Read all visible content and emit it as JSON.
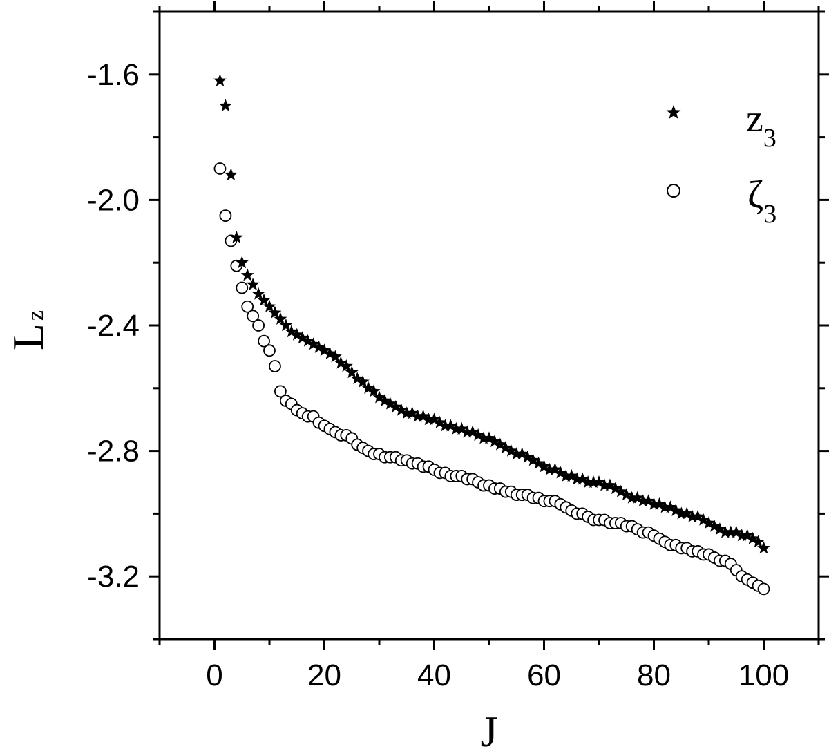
{
  "chart_data": {
    "type": "scatter",
    "xlabel": "J",
    "ylabel": "L",
    "ylabel_subscript": "z",
    "xlim": [
      -10,
      110
    ],
    "ylim": [
      -3.4,
      -1.4
    ],
    "x_ticks": [
      0,
      20,
      40,
      60,
      80,
      100
    ],
    "x_tick_labels": [
      "0",
      "20",
      "40",
      "60",
      "80",
      "100"
    ],
    "y_ticks": [
      -1.6,
      -2.0,
      -2.4,
      -2.8,
      -3.2
    ],
    "y_tick_labels": [
      "-1.6",
      "-2.0",
      "-2.4",
      "-2.8",
      "-3.2"
    ],
    "legend_position": "top-right",
    "series": [
      {
        "name": "z",
        "name_subscript": "3",
        "marker": "star-filled",
        "x": [
          1,
          2,
          3,
          4,
          5,
          6,
          7,
          8,
          9,
          10,
          11,
          12,
          13,
          14,
          15,
          16,
          17,
          18,
          19,
          20,
          21,
          22,
          23,
          24,
          25,
          26,
          27,
          28,
          29,
          30,
          31,
          32,
          33,
          34,
          35,
          36,
          37,
          38,
          39,
          40,
          41,
          42,
          43,
          44,
          45,
          46,
          47,
          48,
          49,
          50,
          51,
          52,
          53,
          54,
          55,
          56,
          57,
          58,
          59,
          60,
          61,
          62,
          63,
          64,
          65,
          66,
          67,
          68,
          69,
          70,
          71,
          72,
          73,
          74,
          75,
          76,
          77,
          78,
          79,
          80,
          81,
          82,
          83,
          84,
          85,
          86,
          87,
          88,
          89,
          90,
          91,
          92,
          93,
          94,
          95,
          96,
          97,
          98,
          99,
          100
        ],
        "y": [
          -1.62,
          -1.7,
          -1.92,
          -2.12,
          -2.2,
          -2.24,
          -2.27,
          -2.3,
          -2.32,
          -2.34,
          -2.36,
          -2.38,
          -2.4,
          -2.42,
          -2.43,
          -2.44,
          -2.45,
          -2.46,
          -2.47,
          -2.48,
          -2.49,
          -2.5,
          -2.52,
          -2.53,
          -2.55,
          -2.57,
          -2.58,
          -2.6,
          -2.61,
          -2.63,
          -2.64,
          -2.65,
          -2.66,
          -2.67,
          -2.68,
          -2.68,
          -2.69,
          -2.69,
          -2.7,
          -2.7,
          -2.71,
          -2.72,
          -2.72,
          -2.73,
          -2.73,
          -2.74,
          -2.74,
          -2.75,
          -2.76,
          -2.76,
          -2.77,
          -2.78,
          -2.79,
          -2.8,
          -2.81,
          -2.81,
          -2.82,
          -2.83,
          -2.84,
          -2.85,
          -2.86,
          -2.86,
          -2.87,
          -2.88,
          -2.88,
          -2.89,
          -2.89,
          -2.9,
          -2.9,
          -2.9,
          -2.91,
          -2.91,
          -2.92,
          -2.93,
          -2.94,
          -2.95,
          -2.95,
          -2.96,
          -2.96,
          -2.97,
          -2.97,
          -2.98,
          -2.98,
          -2.99,
          -3.0,
          -3.0,
          -3.01,
          -3.01,
          -3.02,
          -3.03,
          -3.04,
          -3.05,
          -3.06,
          -3.06,
          -3.06,
          -3.07,
          -3.07,
          -3.08,
          -3.09,
          -3.11
        ]
      },
      {
        "name": "ζ",
        "name_subscript": "3",
        "marker": "circle-open",
        "x": [
          1,
          2,
          3,
          4,
          5,
          6,
          7,
          8,
          9,
          10,
          11,
          12,
          13,
          14,
          15,
          16,
          17,
          18,
          19,
          20,
          21,
          22,
          23,
          24,
          25,
          26,
          27,
          28,
          29,
          30,
          31,
          32,
          33,
          34,
          35,
          36,
          37,
          38,
          39,
          40,
          41,
          42,
          43,
          44,
          45,
          46,
          47,
          48,
          49,
          50,
          51,
          52,
          53,
          54,
          55,
          56,
          57,
          58,
          59,
          60,
          61,
          62,
          63,
          64,
          65,
          66,
          67,
          68,
          69,
          70,
          71,
          72,
          73,
          74,
          75,
          76,
          77,
          78,
          79,
          80,
          81,
          82,
          83,
          84,
          85,
          86,
          87,
          88,
          89,
          90,
          91,
          92,
          93,
          94,
          95,
          96,
          97,
          98,
          99,
          100
        ],
        "y": [
          -1.9,
          -2.05,
          -2.13,
          -2.21,
          -2.28,
          -2.34,
          -2.37,
          -2.4,
          -2.45,
          -2.48,
          -2.53,
          -2.61,
          -2.64,
          -2.65,
          -2.67,
          -2.68,
          -2.69,
          -2.69,
          -2.71,
          -2.72,
          -2.73,
          -2.74,
          -2.75,
          -2.75,
          -2.76,
          -2.78,
          -2.79,
          -2.8,
          -2.81,
          -2.81,
          -2.82,
          -2.82,
          -2.82,
          -2.83,
          -2.83,
          -2.84,
          -2.84,
          -2.85,
          -2.85,
          -2.86,
          -2.87,
          -2.87,
          -2.88,
          -2.88,
          -2.88,
          -2.89,
          -2.89,
          -2.9,
          -2.91,
          -2.91,
          -2.92,
          -2.92,
          -2.93,
          -2.93,
          -2.94,
          -2.94,
          -2.94,
          -2.95,
          -2.95,
          -2.96,
          -2.96,
          -2.96,
          -2.97,
          -2.98,
          -2.99,
          -3.0,
          -3.0,
          -3.01,
          -3.02,
          -3.02,
          -3.02,
          -3.03,
          -3.03,
          -3.03,
          -3.04,
          -3.04,
          -3.05,
          -3.06,
          -3.06,
          -3.07,
          -3.08,
          -3.09,
          -3.1,
          -3.1,
          -3.11,
          -3.11,
          -3.12,
          -3.12,
          -3.13,
          -3.13,
          -3.14,
          -3.15,
          -3.15,
          -3.16,
          -3.18,
          -3.2,
          -3.21,
          -3.22,
          -3.23,
          -3.24
        ]
      }
    ]
  }
}
